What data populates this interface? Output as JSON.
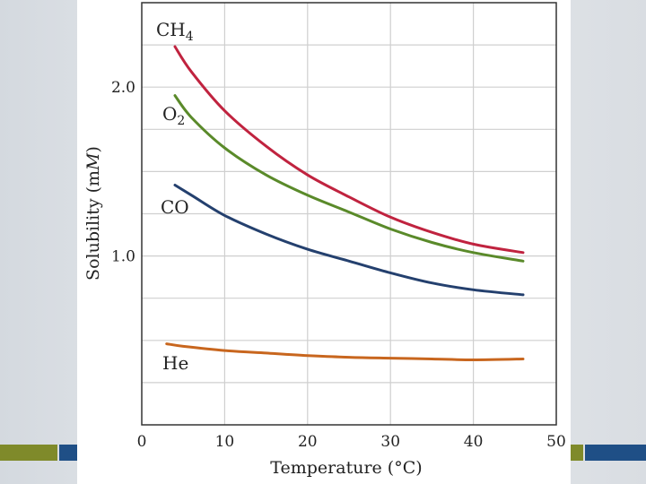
{
  "colors": {
    "ch4": "#c0233f",
    "o2": "#5a8a2a",
    "co": "#24406e",
    "he": "#c8661e",
    "accent_green": "#7f8a2a",
    "accent_blue": "#1f4f86"
  },
  "chart_data": {
    "type": "line",
    "title": "",
    "xlabel": "Temperature (°C)",
    "ylabel_prefix": "Solubility (m",
    "ylabel_italic": "M",
    "ylabel_suffix": ")",
    "xlim": [
      0,
      50
    ],
    "ylim": [
      0,
      2.5
    ],
    "grid": true,
    "x_ticks": [
      0,
      10,
      20,
      30,
      40,
      50
    ],
    "x_tick_labels": [
      "0",
      "10",
      "20",
      "30",
      "40",
      "50"
    ],
    "y_ticks": [
      1.0,
      2.0
    ],
    "y_tick_labels": [
      "1.0",
      "2.0"
    ],
    "y_grid": [
      0.25,
      0.5,
      0.75,
      1.0,
      1.25,
      1.5,
      1.75,
      2.0,
      2.25,
      2.5
    ],
    "series": [
      {
        "key": "ch4",
        "name": "CH",
        "sub": "4",
        "x": [
          4,
          6,
          10,
          15,
          20,
          25,
          30,
          35,
          40,
          46
        ],
        "values": [
          2.24,
          2.09,
          1.86,
          1.65,
          1.48,
          1.35,
          1.23,
          1.14,
          1.07,
          1.02
        ]
      },
      {
        "key": "o2",
        "name": "O",
        "sub": "2",
        "x": [
          4,
          6,
          10,
          15,
          20,
          25,
          30,
          35,
          40,
          46
        ],
        "values": [
          1.95,
          1.82,
          1.64,
          1.48,
          1.36,
          1.26,
          1.16,
          1.08,
          1.02,
          0.97
        ]
      },
      {
        "key": "co",
        "name": "CO",
        "sub": "",
        "x": [
          4,
          6,
          10,
          15,
          20,
          25,
          30,
          35,
          40,
          46
        ],
        "values": [
          1.42,
          1.36,
          1.24,
          1.13,
          1.04,
          0.97,
          0.9,
          0.84,
          0.8,
          0.77
        ]
      },
      {
        "key": "he",
        "name": "He",
        "sub": "",
        "x": [
          3,
          5,
          10,
          15,
          20,
          25,
          30,
          35,
          40,
          46
        ],
        "values": [
          0.48,
          0.465,
          0.44,
          0.425,
          0.41,
          0.4,
          0.395,
          0.39,
          0.385,
          0.39
        ]
      }
    ]
  }
}
